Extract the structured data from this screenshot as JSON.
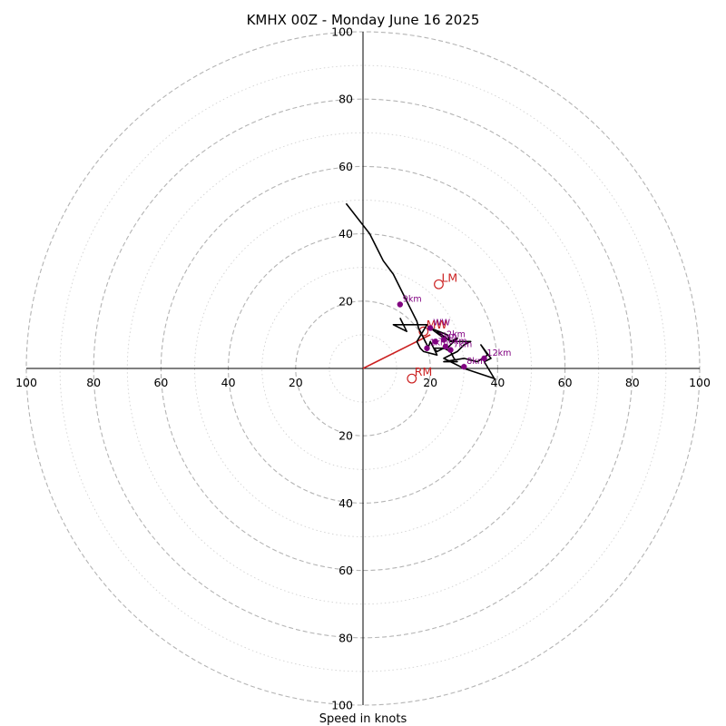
{
  "chart_data": {
    "type": "hodograph",
    "title": "KMHX 00Z - Monday June 16 2025",
    "xlabel": "Speed in knots",
    "ring_max": 100,
    "ring_step_major": 20,
    "ring_step_minor": 10,
    "tick_labels": [
      "100",
      "80",
      "60",
      "40",
      "20",
      "20",
      "40",
      "60",
      "80",
      "100"
    ],
    "colors": {
      "trace": "#000000",
      "marker": "#800080",
      "motion": "#cc2222",
      "major_ring": "#b4b4b4",
      "minor_ring": "#d2d2d2"
    },
    "trace": {
      "u": [
        -5,
        2,
        4,
        6,
        9,
        11,
        13,
        16,
        16.5,
        17,
        18,
        19,
        19.5,
        20,
        21,
        22,
        24,
        26,
        27,
        28,
        24,
        30,
        34,
        37,
        35,
        38,
        36,
        39,
        30,
        26,
        24,
        28,
        30,
        32,
        26,
        25,
        20,
        24,
        22,
        26,
        28,
        25,
        21,
        22,
        18,
        17,
        16,
        19,
        12,
        10,
        9,
        13,
        11
      ],
      "v": [
        49,
        40,
        36,
        32,
        28,
        24,
        20,
        14,
        12,
        11,
        9,
        7,
        6.5,
        8,
        6,
        5,
        6,
        5,
        3,
        2,
        2,
        3,
        2,
        4,
        7,
        3,
        2,
        -3,
        0,
        2,
        3,
        5,
        7,
        8,
        8,
        10,
        12,
        9,
        11,
        8,
        9,
        6,
        6,
        4,
        5,
        6,
        8,
        13,
        13,
        13,
        13,
        11,
        15
      ]
    },
    "height_markers": [
      {
        "label": "9km",
        "u": 11,
        "v": 19
      },
      {
        "label": "WW",
        "u": 20,
        "v": 12
      },
      {
        "label": "3km",
        "u": 21.5,
        "v": 8
      },
      {
        "label": "2km",
        "u": 24,
        "v": 8.5
      },
      {
        "label": "1km",
        "u": 19,
        "v": 6
      },
      {
        "label": "6km",
        "u": 24.5,
        "v": 6.5
      },
      {
        "label": "7km",
        "u": 26,
        "v": 5.5
      },
      {
        "label": "12km",
        "u": 36,
        "v": 3
      },
      {
        "label": "8km",
        "u": 30,
        "v": 0.5
      }
    ],
    "storm_motion": {
      "vector": {
        "u": 20,
        "v": 10
      },
      "points": [
        {
          "label": "LM",
          "u": 22.5,
          "v": 25
        },
        {
          "label": "RM",
          "u": 14.5,
          "v": -3
        },
        {
          "label": "MW",
          "u": 18,
          "v": 11
        }
      ]
    }
  }
}
